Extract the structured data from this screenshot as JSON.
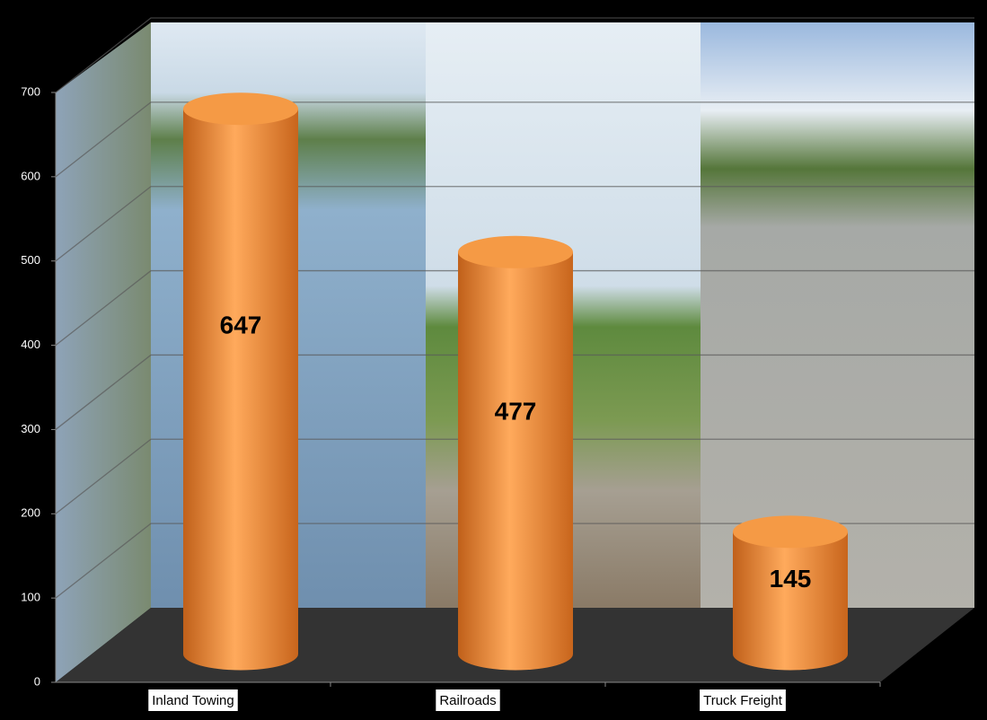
{
  "chart_data": {
    "type": "bar",
    "categories": [
      "Inland Towing",
      "Railroads",
      "Truck Freight"
    ],
    "values": [
      647,
      477,
      145
    ],
    "color": "#f0913a",
    "ylim": [
      0,
      700
    ],
    "yticks": [
      0,
      100,
      200,
      300,
      400,
      500,
      600,
      700
    ],
    "grid": true
  }
}
